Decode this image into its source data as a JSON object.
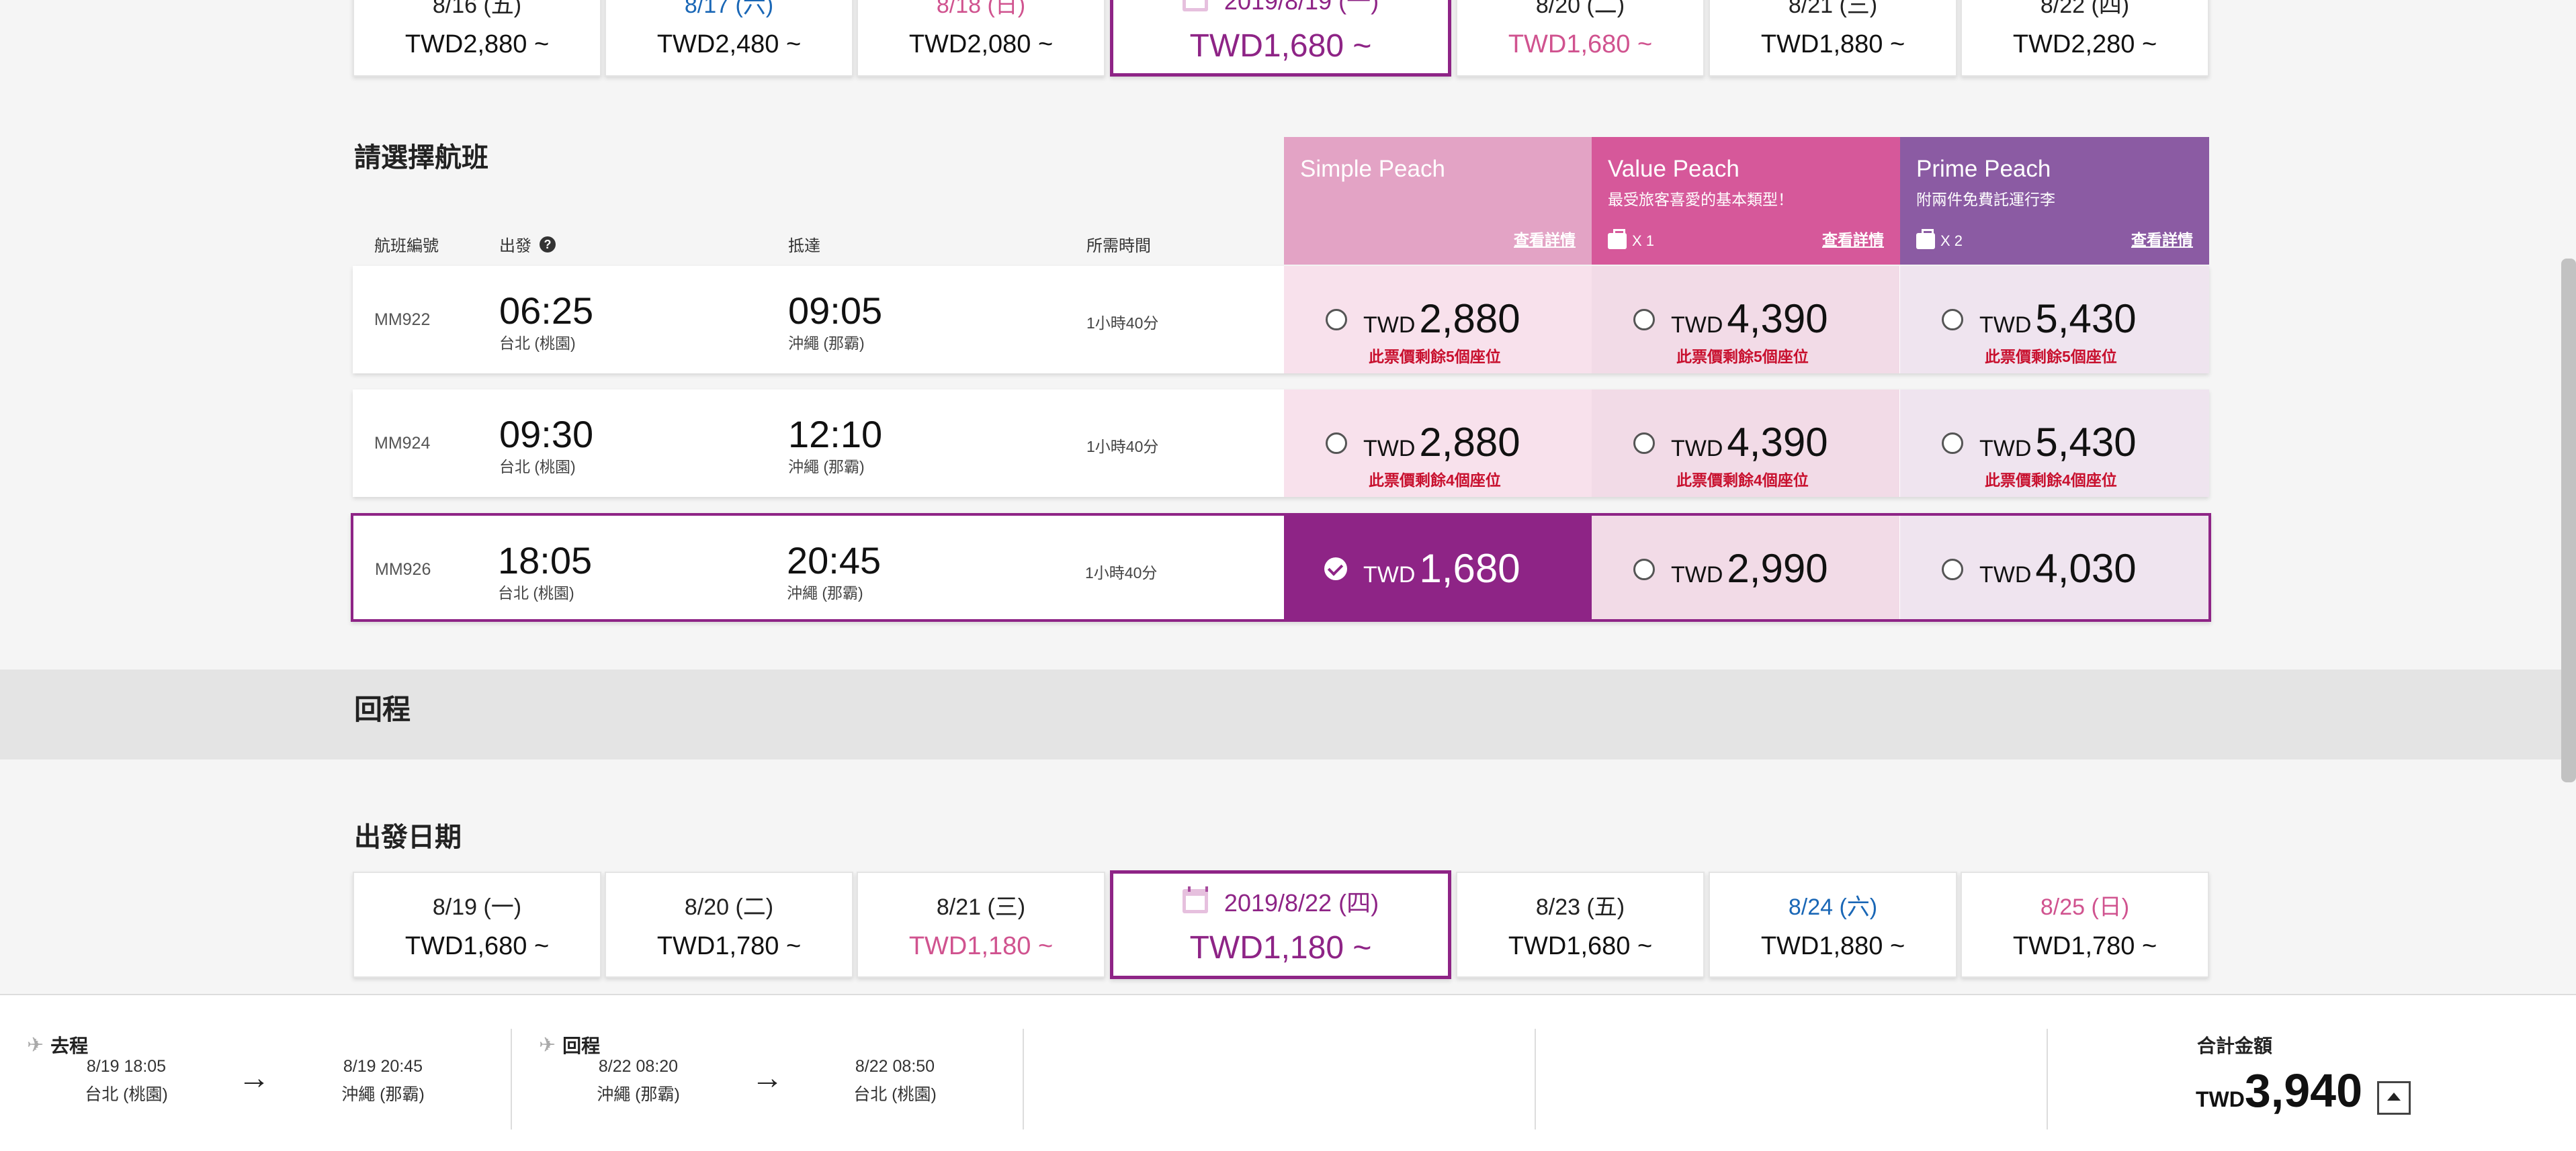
{
  "outbound_dates": [
    {
      "date": "8/16 (五)",
      "price": "TWD2,880 ~"
    },
    {
      "date": "8/17 (六)",
      "price": "TWD2,480 ~"
    },
    {
      "date": "8/18 (日)",
      "price": "TWD2,080 ~"
    },
    {
      "date": "2019/8/19 (一)",
      "price": "TWD1,680 ~"
    },
    {
      "date": "8/20 (二)",
      "price": "TWD1,680 ~"
    },
    {
      "date": "8/21 (三)",
      "price": "TWD1,880 ~"
    },
    {
      "date": "8/22 (四)",
      "price": "TWD2,280 ~"
    }
  ],
  "select_flight_title": "請選擇航班",
  "columns": {
    "flight_no": "航班編號",
    "depart": "出發",
    "arrive": "抵達",
    "duration": "所需時間"
  },
  "fares": [
    {
      "name": "Simple Peach",
      "sub": "",
      "bag": "",
      "detail": "查看詳情",
      "color": "#e3a3c5"
    },
    {
      "name": "Value Peach",
      "sub": "最受旅客喜愛的基本類型！",
      "bag": "X 1",
      "detail": "查看詳情",
      "color": "#d6589a"
    },
    {
      "name": "Prime Peach",
      "sub": "附兩件免費託運行李",
      "bag": "X 2",
      "detail": "查看詳情",
      "color": "#8b5ba3"
    }
  ],
  "flights": [
    {
      "no": "MM922",
      "dep_time": "06:25",
      "dep_city": "台北 (桃園)",
      "arr_time": "09:05",
      "arr_city": "沖繩 (那霸)",
      "duration": "1小時40分",
      "prices": [
        {
          "cur": "TWD",
          "amount": "2,880",
          "left": "此票價剩餘5個座位"
        },
        {
          "cur": "TWD",
          "amount": "4,390",
          "left": "此票價剩餘5個座位"
        },
        {
          "cur": "TWD",
          "amount": "5,430",
          "left": "此票價剩餘5個座位"
        }
      ]
    },
    {
      "no": "MM924",
      "dep_time": "09:30",
      "dep_city": "台北 (桃園)",
      "arr_time": "12:10",
      "arr_city": "沖繩 (那霸)",
      "duration": "1小時40分",
      "prices": [
        {
          "cur": "TWD",
          "amount": "2,880",
          "left": "此票價剩餘4個座位"
        },
        {
          "cur": "TWD",
          "amount": "4,390",
          "left": "此票價剩餘4個座位"
        },
        {
          "cur": "TWD",
          "amount": "5,430",
          "left": "此票價剩餘4個座位"
        }
      ]
    },
    {
      "no": "MM926",
      "dep_time": "18:05",
      "dep_city": "台北 (桃園)",
      "arr_time": "20:45",
      "arr_city": "沖繩 (那霸)",
      "duration": "1小時40分",
      "prices": [
        {
          "cur": "TWD",
          "amount": "1,680",
          "left": ""
        },
        {
          "cur": "TWD",
          "amount": "2,990",
          "left": ""
        },
        {
          "cur": "TWD",
          "amount": "4,030",
          "left": ""
        }
      ]
    }
  ],
  "return_title": "回程",
  "depart_date_title": "出發日期",
  "return_dates": [
    {
      "date": "8/19 (一)",
      "price": "TWD1,680 ~"
    },
    {
      "date": "8/20 (二)",
      "price": "TWD1,780 ~"
    },
    {
      "date": "8/21 (三)",
      "price": "TWD1,180 ~"
    },
    {
      "date": "2019/8/22 (四)",
      "price": "TWD1,180 ~"
    },
    {
      "date": "8/23 (五)",
      "price": "TWD1,680 ~"
    },
    {
      "date": "8/24 (六)",
      "price": "TWD1,880 ~"
    },
    {
      "date": "8/25 (日)",
      "price": "TWD1,780 ~"
    }
  ],
  "footer": {
    "outbound": {
      "label": "去程",
      "dep": "8/19 18:05",
      "dep_city": "台北 (桃園)",
      "arr": "8/19 20:45",
      "arr_city": "沖繩 (那霸)"
    },
    "inbound": {
      "label": "回程",
      "dep": "8/22 08:20",
      "dep_city": "沖繩 (那霸)",
      "arr": "8/22 08:50",
      "arr_city": "台北 (桃園)"
    },
    "arrow": "→",
    "plane_icon": "✈",
    "total_label": "合計金額",
    "total_cur": "TWD",
    "total_value": "3,940"
  },
  "colors": {
    "accent": "#8e2486",
    "pink": "#d0538f",
    "blue": "#1a67b6",
    "seat_warning": "#c8102e"
  }
}
